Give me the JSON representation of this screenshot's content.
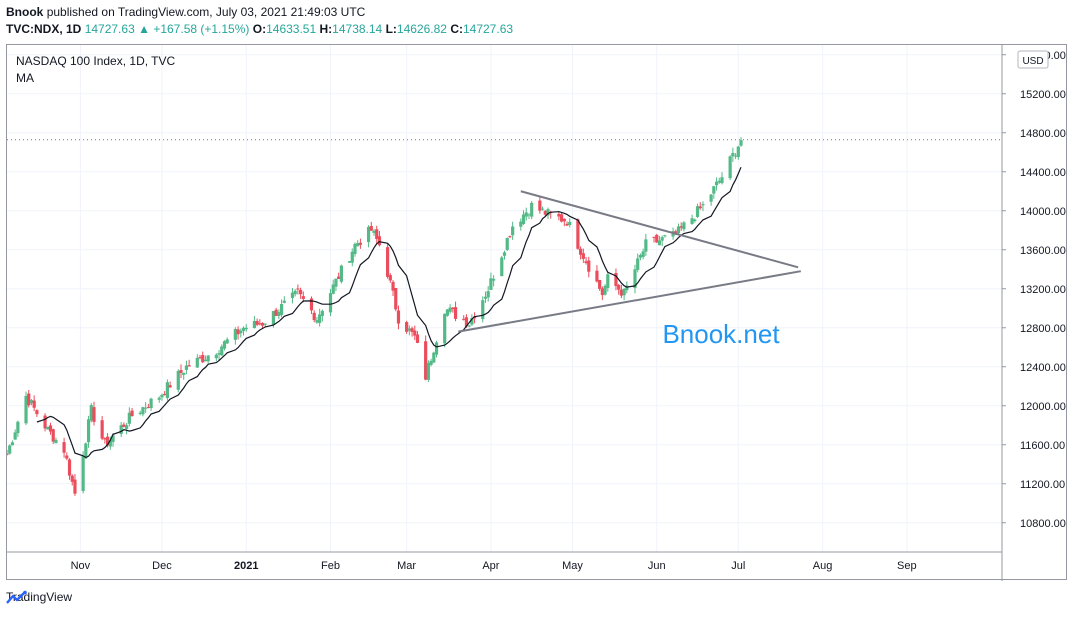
{
  "header": {
    "publisher": "Bnook",
    "published_text": "published on TradingView.com, July 03, 2021 21:49:03 UTC",
    "symbol": "TVC:NDX, 1D",
    "last": "14727.63",
    "change": "+167.58 (+1.15%)",
    "o_label": "O:",
    "o": "14633.51",
    "h_label": "H:",
    "h": "14738.14",
    "l_label": "L:",
    "l": "14626.82",
    "c_label": "C:",
    "c": "14727.63"
  },
  "legend": {
    "title": "NASDAQ 100 Index, 1D, TVC",
    "indicator": "MA"
  },
  "currency": "USD",
  "watermark": "Bnook.net",
  "footer": {
    "brand": "TradingView"
  },
  "colors": {
    "up": "#53b987",
    "down": "#eb4d5c",
    "ma": "#131722",
    "trend": "#787b86",
    "watermark": "#2196f3",
    "last_line": "#26a69a"
  },
  "chart_data": {
    "type": "candlestick",
    "title": "NASDAQ 100 Index, 1D, TVC",
    "y_ticks": [
      10800,
      11200,
      11600,
      12000,
      12400,
      12800,
      13200,
      13600,
      14000,
      14400,
      14800,
      15200,
      15600
    ],
    "ylim": [
      10500,
      15700
    ],
    "x_ticks": [
      "Nov",
      "Dec",
      "2021",
      "Feb",
      "Mar",
      "Apr",
      "May",
      "Jun",
      "Jul",
      "Aug",
      "Sep"
    ],
    "x_tick_dates": [
      "2020-11-01",
      "2020-12-01",
      "2021-01-01",
      "2021-02-01",
      "2021-03-01",
      "2021-04-01",
      "2021-05-01",
      "2021-06-01",
      "2021-07-01",
      "2021-08-01",
      "2021-09-01"
    ],
    "xlim": [
      "2020-10-05",
      "2021-10-06"
    ],
    "last_price": 14727.63,
    "close_keypoints": [
      [
        "2020-10-05",
        11500
      ],
      [
        "2020-10-12",
        12100
      ],
      [
        "2020-10-20",
        11750
      ],
      [
        "2020-10-26",
        11550
      ],
      [
        "2020-10-30",
        11100
      ],
      [
        "2020-11-05",
        11950
      ],
      [
        "2020-11-10",
        11600
      ],
      [
        "2020-11-20",
        11900
      ],
      [
        "2020-11-30",
        12100
      ],
      [
        "2020-12-10",
        12400
      ],
      [
        "2020-12-20",
        12550
      ],
      [
        "2020-12-31",
        12800
      ],
      [
        "2021-01-07",
        12850
      ],
      [
        "2021-01-20",
        13150
      ],
      [
        "2021-01-27",
        12900
      ],
      [
        "2021-02-10",
        13650
      ],
      [
        "2021-02-16",
        13800
      ],
      [
        "2021-02-20",
        13600
      ],
      [
        "2021-02-26",
        12900
      ],
      [
        "2021-03-04",
        12700
      ],
      [
        "2021-03-08",
        12300
      ],
      [
        "2021-03-15",
        13000
      ],
      [
        "2021-03-24",
        12850
      ],
      [
        "2021-03-31",
        13200
      ],
      [
        "2021-04-09",
        13850
      ],
      [
        "2021-04-16",
        14050
      ],
      [
        "2021-04-23",
        13950
      ],
      [
        "2021-04-29",
        13900
      ],
      [
        "2021-05-04",
        13600
      ],
      [
        "2021-05-12",
        13150
      ],
      [
        "2021-05-14",
        13300
      ],
      [
        "2021-05-20",
        13150
      ],
      [
        "2021-05-28",
        13650
      ],
      [
        "2021-06-08",
        13750
      ],
      [
        "2021-06-18",
        14050
      ],
      [
        "2021-06-25",
        14350
      ],
      [
        "2021-07-02",
        14727.63
      ]
    ],
    "trendlines": [
      {
        "from": [
          "2021-04-12",
          14200
        ],
        "to": [
          "2021-07-23",
          13420
        ]
      },
      {
        "from": [
          "2021-03-20",
          12760
        ],
        "to": [
          "2021-07-24",
          13380
        ]
      }
    ]
  }
}
